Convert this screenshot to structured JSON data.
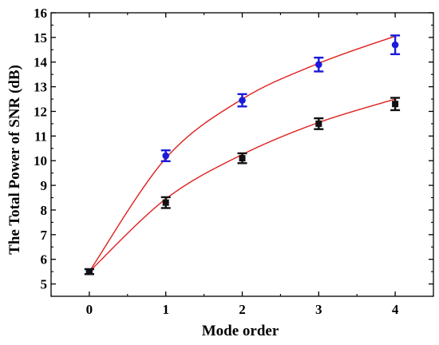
{
  "chart_data": {
    "type": "scatter",
    "xlabel": "Mode order",
    "ylabel": "The Total Power of SNR (dB)",
    "xlim": [
      -0.5,
      4.5
    ],
    "ylim": [
      4.5,
      16
    ],
    "x_ticks": [
      "0",
      "1",
      "2",
      "3",
      "4"
    ],
    "y_ticks": [
      "5",
      "6",
      "7",
      "8",
      "9",
      "10",
      "11",
      "12",
      "13",
      "14",
      "15",
      "16"
    ],
    "grid": false,
    "legend": "none",
    "series": [
      {
        "marker": "circle",
        "color": "#1a1adb",
        "x": [
          0,
          1,
          2,
          3,
          4
        ],
        "y": [
          5.5,
          10.2,
          12.45,
          13.9,
          14.7
        ],
        "err": [
          0.1,
          0.22,
          0.25,
          0.28,
          0.38
        ],
        "fit": [
          5.5,
          10.1,
          12.5,
          13.95,
          15.05
        ]
      },
      {
        "marker": "square",
        "color": "#111111",
        "x": [
          0,
          1,
          2,
          3,
          4
        ],
        "y": [
          5.5,
          8.3,
          10.1,
          11.5,
          12.3
        ],
        "err": [
          0.1,
          0.22,
          0.2,
          0.22,
          0.25
        ],
        "fit": [
          5.5,
          8.45,
          10.25,
          11.55,
          12.5
        ]
      }
    ],
    "fit_color": "#e02020"
  }
}
